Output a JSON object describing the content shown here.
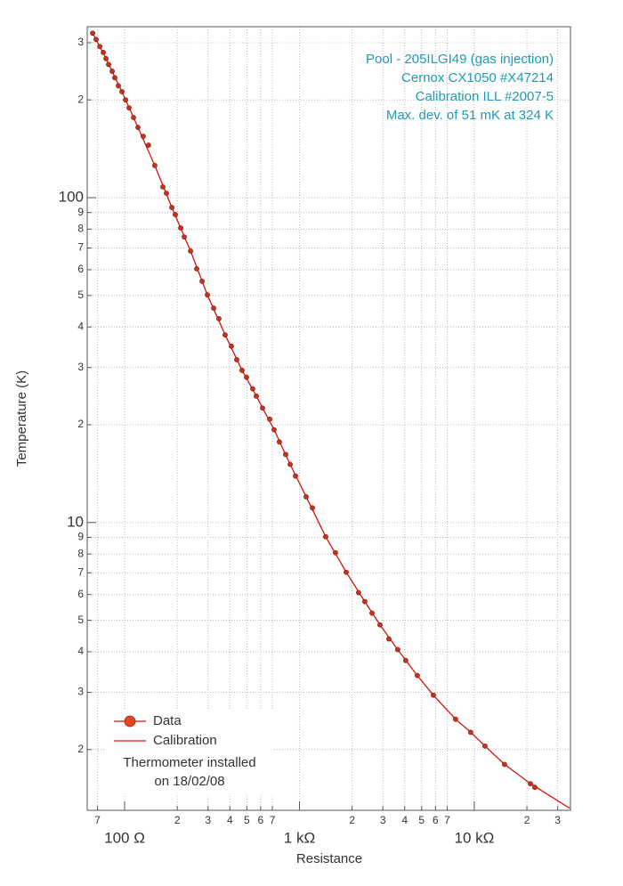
{
  "chart_data": {
    "type": "scatter",
    "xlabel": "Resistance",
    "ylabel": "Temperature (K)",
    "xscale": "log",
    "yscale": "log",
    "grid": true,
    "annotations": [
      "Pool - 205ILGI49 (gas injection)",
      "Cernox CX1050 #X47214",
      "Calibration ILL #2007-5",
      "Max. dev. of 51 mK at 324 K"
    ],
    "annotation_color": "#1f9ab8",
    "legend_position": "lower left",
    "legend_note": [
      "Thermometer installed",
      "on 18/02/08"
    ],
    "xlim": [
      61.1,
      35500
    ],
    "ylim": [
      1.3,
      336
    ],
    "xticks": [
      {
        "value": 70,
        "label": "7"
      },
      {
        "value": 100,
        "label": "100  Ω"
      },
      {
        "value": 200,
        "label": "2"
      },
      {
        "value": 300,
        "label": "3"
      },
      {
        "value": 400,
        "label": "4"
      },
      {
        "value": 500,
        "label": "5"
      },
      {
        "value": 600,
        "label": "6"
      },
      {
        "value": 700,
        "label": "7"
      },
      {
        "value": 1000,
        "label": "1 kΩ"
      },
      {
        "value": 2000,
        "label": "2"
      },
      {
        "value": 3000,
        "label": "3"
      },
      {
        "value": 4000,
        "label": "4"
      },
      {
        "value": 5000,
        "label": "5"
      },
      {
        "value": 6000,
        "label": "6"
      },
      {
        "value": 7000,
        "label": "7"
      },
      {
        "value": 10000,
        "label": "10 kΩ"
      },
      {
        "value": 20000,
        "label": "2"
      },
      {
        "value": 30000,
        "label": "3"
      }
    ],
    "yticks": [
      2,
      3,
      4,
      5,
      6,
      7,
      8,
      9,
      10,
      {
        "value": 20,
        "label": "2"
      },
      {
        "value": 30,
        "label": "3"
      },
      {
        "value": 40,
        "label": "4"
      },
      {
        "value": 50,
        "label": "5"
      },
      {
        "value": 60,
        "label": "6"
      },
      {
        "value": 70,
        "label": "7"
      },
      {
        "value": 80,
        "label": "8"
      },
      {
        "value": 90,
        "label": "9"
      },
      100,
      {
        "value": 200,
        "label": "2"
      },
      {
        "value": 300,
        "label": "3"
      }
    ],
    "series": [
      {
        "name": "Data",
        "kind": "scatter",
        "color": "#c8321c",
        "x": [
          65.6,
          68.7,
          72.1,
          75.5,
          78.2,
          81.0,
          84.9,
          87.9,
          92.1,
          96.5,
          101.2,
          106,
          112.4,
          119.2,
          127.8,
          137,
          148.8,
          165.5,
          173.4,
          186.2,
          195,
          209.4,
          219.3,
          238.3,
          258.4,
          277.3,
          297.4,
          322.8,
          346,
          375.7,
          408,
          437.6,
          469.6,
          498,
          540.5,
          566.6,
          615.1,
          675.7,
          716,
          768,
          833.8,
          884.8,
          949,
          1092,
          1186,
          1413,
          1607,
          1850,
          2179,
          2366,
          2600,
          2888,
          3246,
          3650,
          4055,
          4723,
          5834,
          7819,
          9541,
          11510,
          14900,
          20940,
          22190
        ],
        "values": [
          321,
          307,
          292,
          280,
          268,
          257,
          245,
          234,
          221,
          212,
          200,
          189,
          176.5,
          164.6,
          154.5,
          145.1,
          125.6,
          107.9,
          103.2,
          93.3,
          88.7,
          80.7,
          75.7,
          68.5,
          60.4,
          55.3,
          50.2,
          45.7,
          42.4,
          37.8,
          34.9,
          31.7,
          29.4,
          28.0,
          25.8,
          24.5,
          22.5,
          20.8,
          19.3,
          17.7,
          16.2,
          15.1,
          13.9,
          12.0,
          11.1,
          9.04,
          8.07,
          7.03,
          6.08,
          5.71,
          5.26,
          4.84,
          4.38,
          4.06,
          3.76,
          3.38,
          2.94,
          2.48,
          2.26,
          2.05,
          1.8,
          1.57,
          1.53
        ]
      },
      {
        "name": "Calibration",
        "kind": "line",
        "color": "#d0140c",
        "x": [
          65.6,
          78.2,
          96.5,
          119.2,
          148.8,
          186.2,
          238.3,
          297.4,
          375.7,
          469.6,
          566.6,
          716,
          884.8,
          1092,
          1413,
          1850,
          2366,
          2888,
          3650,
          4723,
          5834,
          7819,
          9541,
          11510,
          14900,
          20940,
          35080
        ],
        "values": [
          321,
          268,
          212,
          164.6,
          125.6,
          93.3,
          68.5,
          50.2,
          37.8,
          29.4,
          24.5,
          19.3,
          15.1,
          12.0,
          9.04,
          7.03,
          5.71,
          4.84,
          4.06,
          3.38,
          2.94,
          2.48,
          2.26,
          2.05,
          1.8,
          1.57,
          1.32
        ]
      }
    ]
  }
}
